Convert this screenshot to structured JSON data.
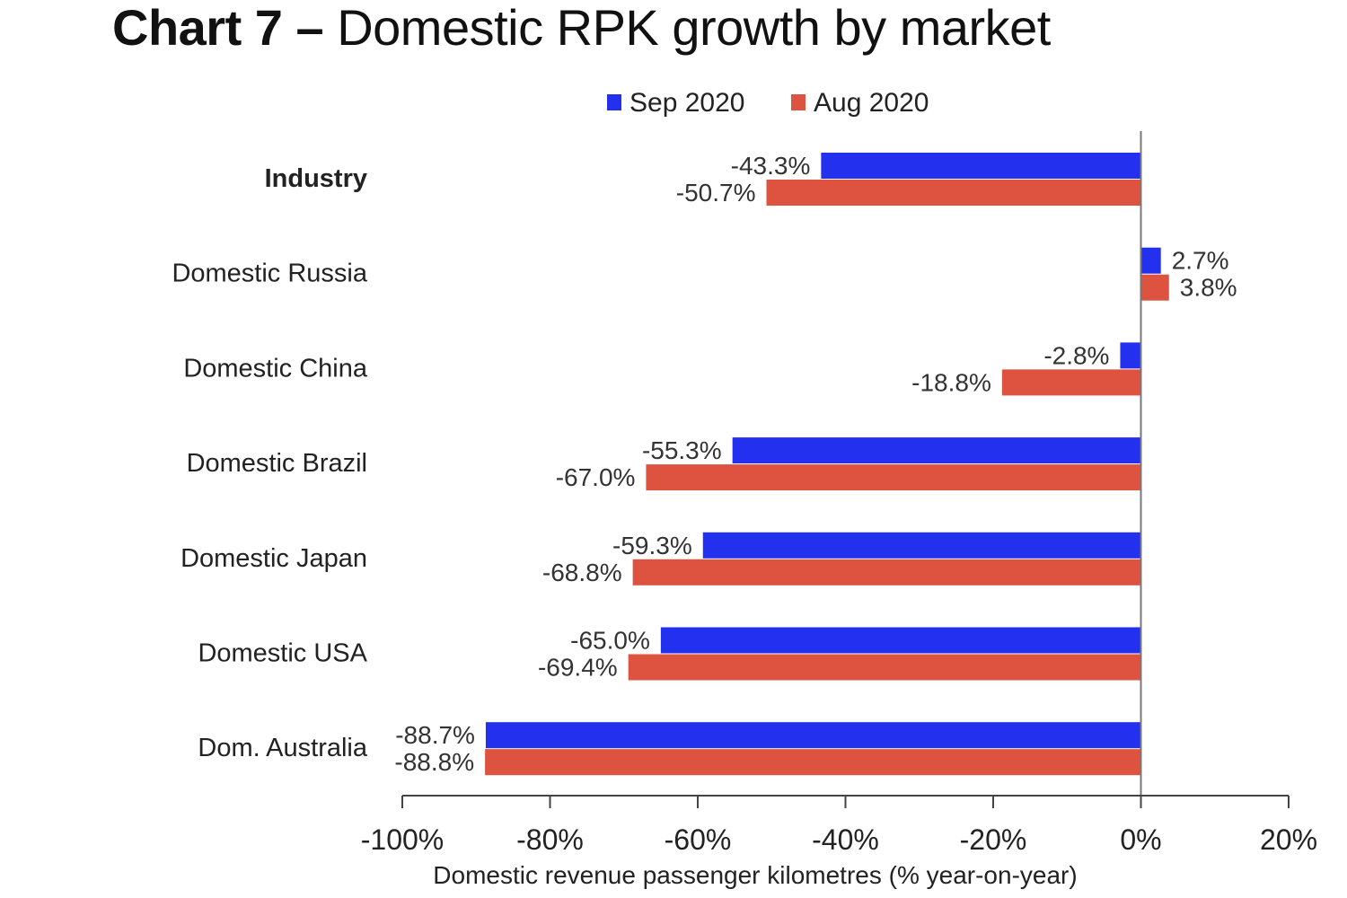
{
  "title": {
    "prefix": "Chart 7 –",
    "text": "Domestic RPK growth by market"
  },
  "chart_data": {
    "type": "bar",
    "orientation": "horizontal",
    "title": "Chart 7 – Domestic RPK growth by market",
    "xlabel": "Domestic revenue passenger kilometres (% year-on-year)",
    "ylabel": "",
    "xlim": [
      -100,
      20
    ],
    "xticks": [
      -100,
      -80,
      -60,
      -40,
      -20,
      0,
      20
    ],
    "xtick_labels": [
      "-100%",
      "-80%",
      "-60%",
      "-40%",
      "-20%",
      "0%",
      "20%"
    ],
    "grid": false,
    "legend_position": "top-center",
    "categories": [
      "Industry",
      "Domestic Russia",
      "Domestic China",
      "Domestic Brazil",
      "Domestic Japan",
      "Domestic USA",
      "Dom. Australia"
    ],
    "bold_categories": [
      "Industry"
    ],
    "series": [
      {
        "name": "Sep 2020",
        "color": "#2330EE",
        "values": [
          -43.3,
          2.7,
          -2.8,
          -55.3,
          -59.3,
          -65.0,
          -88.7
        ],
        "labels": [
          "-43.3%",
          "2.7%",
          "-2.8%",
          "-55.3%",
          "-59.3%",
          "-65.0%",
          "-88.7%"
        ]
      },
      {
        "name": "Aug 2020",
        "color": "#DE533F",
        "values": [
          -50.7,
          3.8,
          -18.8,
          -67.0,
          -68.8,
          -69.4,
          -88.8
        ],
        "labels": [
          "-50.7%",
          "3.8%",
          "-18.8%",
          "-67.0%",
          "-68.8%",
          "-69.4%",
          "-88.8%"
        ]
      }
    ]
  }
}
